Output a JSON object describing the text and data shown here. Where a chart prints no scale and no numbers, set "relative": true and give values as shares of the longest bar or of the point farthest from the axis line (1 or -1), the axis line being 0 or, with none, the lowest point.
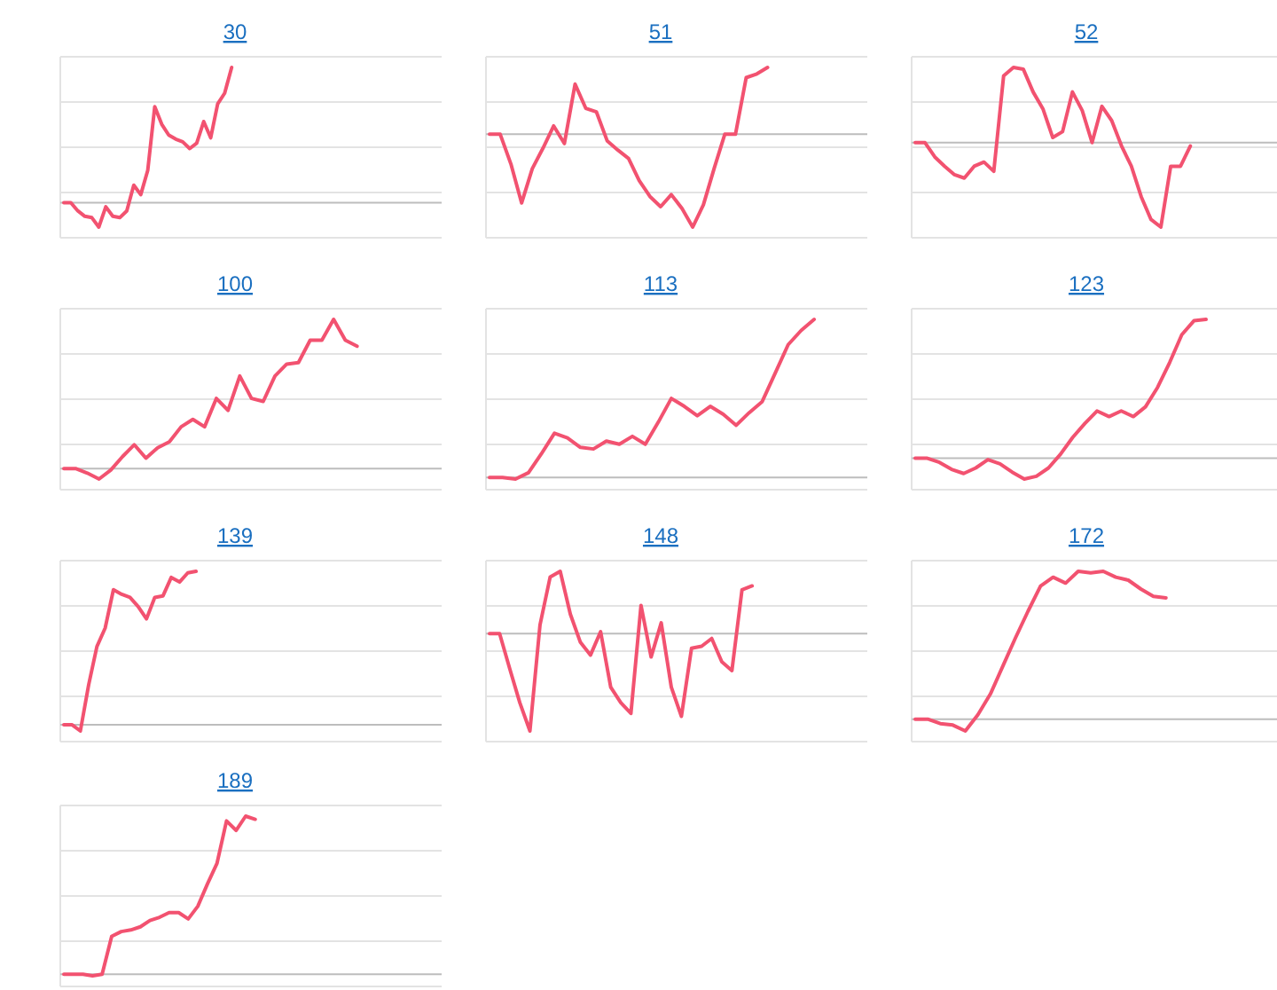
{
  "chart_data": [
    {
      "type": "line",
      "title": "30",
      "relative": true,
      "grid": true,
      "categories": [
        null,
        null,
        null,
        null,
        null,
        null,
        null,
        null,
        null,
        null,
        null,
        null,
        null,
        null,
        null,
        null,
        null,
        null,
        null,
        null,
        null,
        null,
        null,
        null,
        null,
        null,
        null,
        null,
        null,
        null,
        null,
        null,
        null,
        null,
        null,
        null,
        null,
        null,
        null,
        null,
        null,
        null,
        null,
        null,
        null,
        null,
        null,
        null,
        null,
        null,
        null,
        null,
        null
      ],
      "series": [
        {
          "color": "#f25270",
          "values": [
            0,
            0,
            -0.06,
            -0.1,
            -0.11,
            -0.18,
            -0.03,
            -0.1,
            -0.11,
            -0.06,
            0.13,
            0.06,
            0.24,
            0.71,
            0.58,
            0.5,
            0.47,
            0.45,
            0.4,
            0.44,
            0.6,
            0.48,
            0.73,
            0.81,
            1,
            null,
            null,
            null,
            null,
            null,
            null,
            null,
            null,
            null,
            null,
            null,
            null,
            null,
            null,
            null,
            null,
            null,
            null,
            null,
            null,
            null,
            null,
            null,
            null,
            null,
            null,
            null,
            null
          ]
        }
      ]
    },
    {
      "type": "line",
      "title": "51",
      "relative": true,
      "grid": true,
      "categories": [
        null,
        null,
        null,
        null,
        null,
        null,
        null,
        null,
        null,
        null,
        null,
        null,
        null,
        null,
        null,
        null,
        null,
        null,
        null,
        null,
        null,
        null,
        null,
        null,
        null,
        null,
        null,
        null,
        null,
        null,
        null,
        null,
        null,
        null,
        null
      ],
      "series": [
        {
          "color": "#f25270",
          "values": [
            0,
            0,
            -0.32,
            -0.74,
            -0.37,
            -0.15,
            0.09,
            -0.1,
            0.54,
            0.28,
            0.24,
            -0.07,
            -0.17,
            -0.26,
            -0.5,
            -0.67,
            -0.78,
            -0.65,
            -0.8,
            -1,
            -0.76,
            -0.37,
            0,
            0,
            0.61,
            0.65,
            0.72,
            null,
            null,
            null,
            null,
            null,
            null,
            null,
            null
          ]
        }
      ]
    },
    {
      "type": "line",
      "title": "52",
      "relative": true,
      "grid": true,
      "categories": [
        null,
        null,
        null,
        null,
        null,
        null,
        null,
        null,
        null,
        null,
        null,
        null,
        null,
        null,
        null,
        null,
        null,
        null,
        null,
        null,
        null,
        null,
        null,
        null,
        null,
        null,
        null,
        null,
        null,
        null,
        null,
        null,
        null,
        null,
        null,
        null,
        null,
        null
      ],
      "series": [
        {
          "color": "#f25270",
          "values": [
            0,
            0,
            -0.17,
            -0.28,
            -0.38,
            -0.42,
            -0.28,
            -0.23,
            -0.34,
            0.79,
            0.89,
            0.87,
            0.6,
            0.4,
            0.06,
            0.13,
            0.6,
            0.38,
            0,
            0.43,
            0.26,
            -0.04,
            -0.28,
            -0.64,
            -0.91,
            -1,
            -0.28,
            -0.28,
            -0.04,
            null,
            null,
            null,
            null,
            null,
            null,
            null,
            null,
            null
          ]
        }
      ]
    },
    {
      "type": "line",
      "title": "100",
      "relative": true,
      "grid": true,
      "categories": [
        null,
        null,
        null,
        null,
        null,
        null,
        null,
        null,
        null,
        null,
        null,
        null,
        null,
        null,
        null,
        null,
        null,
        null,
        null,
        null,
        null,
        null,
        null,
        null,
        null,
        null,
        null,
        null,
        null,
        null,
        null,
        null
      ],
      "series": [
        {
          "color": "#f25270",
          "values": [
            0,
            0,
            -0.03,
            -0.07,
            -0.01,
            0.08,
            0.16,
            0.07,
            0.14,
            0.18,
            0.28,
            0.33,
            0.28,
            0.47,
            0.39,
            0.62,
            0.47,
            0.45,
            0.62,
            0.7,
            0.71,
            0.86,
            0.86,
            1,
            0.86,
            0.82,
            null,
            null,
            null,
            null,
            null,
            null
          ]
        }
      ]
    },
    {
      "type": "line",
      "title": "113",
      "relative": true,
      "grid": true,
      "categories": [
        null,
        null,
        null,
        null,
        null,
        null,
        null,
        null,
        null,
        null,
        null,
        null,
        null,
        null,
        null,
        null,
        null,
        null,
        null,
        null,
        null,
        null,
        null,
        null,
        null,
        null,
        null,
        null,
        null
      ],
      "series": [
        {
          "color": "#f25270",
          "values": [
            0,
            0,
            -0.01,
            0.03,
            0.15,
            0.28,
            0.25,
            0.19,
            0.18,
            0.23,
            0.21,
            0.26,
            0.21,
            0.35,
            0.5,
            0.45,
            0.39,
            0.45,
            0.4,
            0.33,
            0.41,
            0.48,
            0.66,
            0.84,
            0.93,
            1,
            null,
            null,
            null
          ]
        }
      ]
    },
    {
      "type": "line",
      "title": "123",
      "relative": true,
      "grid": true,
      "categories": [
        null,
        null,
        null,
        null,
        null,
        null,
        null,
        null,
        null,
        null,
        null,
        null,
        null,
        null,
        null,
        null,
        null,
        null,
        null,
        null,
        null,
        null,
        null,
        null,
        null,
        null,
        null,
        null,
        null,
        null,
        null
      ],
      "series": [
        {
          "color": "#f25270",
          "values": [
            0,
            0,
            -0.03,
            -0.08,
            -0.11,
            -0.07,
            -0.01,
            -0.04,
            -0.1,
            -0.15,
            -0.13,
            -0.07,
            0.03,
            0.15,
            0.25,
            0.34,
            0.3,
            0.34,
            0.3,
            0.37,
            0.51,
            0.69,
            0.89,
            0.99,
            1,
            null,
            null,
            null,
            null,
            null,
            null
          ]
        }
      ]
    },
    {
      "type": "line",
      "title": "139",
      "relative": true,
      "grid": true,
      "categories": [
        null,
        null,
        null,
        null,
        null,
        null,
        null,
        null,
        null,
        null,
        null,
        null,
        null,
        null,
        null,
        null,
        null,
        null,
        null,
        null,
        null,
        null,
        null,
        null,
        null,
        null,
        null,
        null,
        null,
        null,
        null,
        null,
        null,
        null,
        null,
        null,
        null,
        null,
        null,
        null,
        null,
        null,
        null,
        null,
        null
      ],
      "series": [
        {
          "color": "#f25270",
          "values": [
            0,
            0,
            -0.04,
            0.26,
            0.51,
            0.63,
            0.88,
            0.85,
            0.83,
            0.77,
            0.69,
            0.83,
            0.84,
            0.96,
            0.93,
            0.99,
            1,
            null,
            null,
            null,
            null,
            null,
            null,
            null,
            null,
            null,
            null,
            null,
            null,
            null,
            null,
            null,
            null,
            null,
            null,
            null,
            null,
            null,
            null,
            null,
            null,
            null,
            null,
            null,
            null
          ]
        }
      ]
    },
    {
      "type": "line",
      "title": "148",
      "relative": true,
      "grid": true,
      "categories": [
        null,
        null,
        null,
        null,
        null,
        null,
        null,
        null,
        null,
        null,
        null,
        null,
        null,
        null,
        null,
        null,
        null,
        null,
        null,
        null,
        null,
        null,
        null,
        null,
        null,
        null,
        null,
        null,
        null,
        null,
        null,
        null,
        null,
        null,
        null,
        null,
        null
      ],
      "series": [
        {
          "color": "#f25270",
          "values": [
            0,
            0,
            -0.36,
            -0.71,
            -1,
            0.09,
            0.58,
            0.64,
            0.2,
            -0.09,
            -0.22,
            0.02,
            -0.55,
            -0.71,
            -0.82,
            0.29,
            -0.24,
            0.11,
            -0.55,
            -0.85,
            -0.15,
            -0.13,
            -0.05,
            -0.29,
            -0.38,
            0.45,
            0.49,
            null,
            null,
            null,
            null,
            null,
            null,
            null,
            null,
            null,
            null
          ]
        }
      ]
    },
    {
      "type": "line",
      "title": "172",
      "relative": true,
      "grid": true,
      "categories": [
        null,
        null,
        null,
        null,
        null,
        null,
        null,
        null,
        null,
        null,
        null,
        null,
        null,
        null,
        null,
        null,
        null,
        null,
        null,
        null,
        null,
        null,
        null,
        null,
        null,
        null,
        null,
        null,
        null,
        null
      ],
      "series": [
        {
          "color": "#f25270",
          "values": [
            0,
            0,
            -0.03,
            -0.04,
            -0.08,
            0.03,
            0.17,
            0.36,
            0.55,
            0.73,
            0.9,
            0.96,
            0.92,
            1,
            0.99,
            1,
            0.96,
            0.94,
            0.88,
            0.83,
            0.82,
            null,
            null,
            null,
            null,
            null,
            null,
            null,
            null,
            null
          ]
        }
      ]
    },
    {
      "type": "line",
      "title": "189",
      "relative": true,
      "grid": true,
      "categories": [
        null,
        null,
        null,
        null,
        null,
        null,
        null,
        null,
        null,
        null,
        null,
        null,
        null,
        null,
        null,
        null,
        null,
        null,
        null,
        null,
        null,
        null,
        null,
        null,
        null,
        null,
        null,
        null,
        null,
        null,
        null,
        null,
        null,
        null,
        null,
        null,
        null,
        null,
        null
      ],
      "series": [
        {
          "color": "#f25270",
          "values": [
            0,
            0,
            0,
            -0.01,
            0,
            0.24,
            0.27,
            0.28,
            0.3,
            0.34,
            0.36,
            0.39,
            0.39,
            0.35,
            0.43,
            0.57,
            0.7,
            0.97,
            0.91,
            1,
            0.98,
            null,
            null,
            null,
            null,
            null,
            null,
            null,
            null,
            null,
            null,
            null,
            null,
            null,
            null,
            null,
            null,
            null,
            null
          ]
        }
      ]
    }
  ]
}
